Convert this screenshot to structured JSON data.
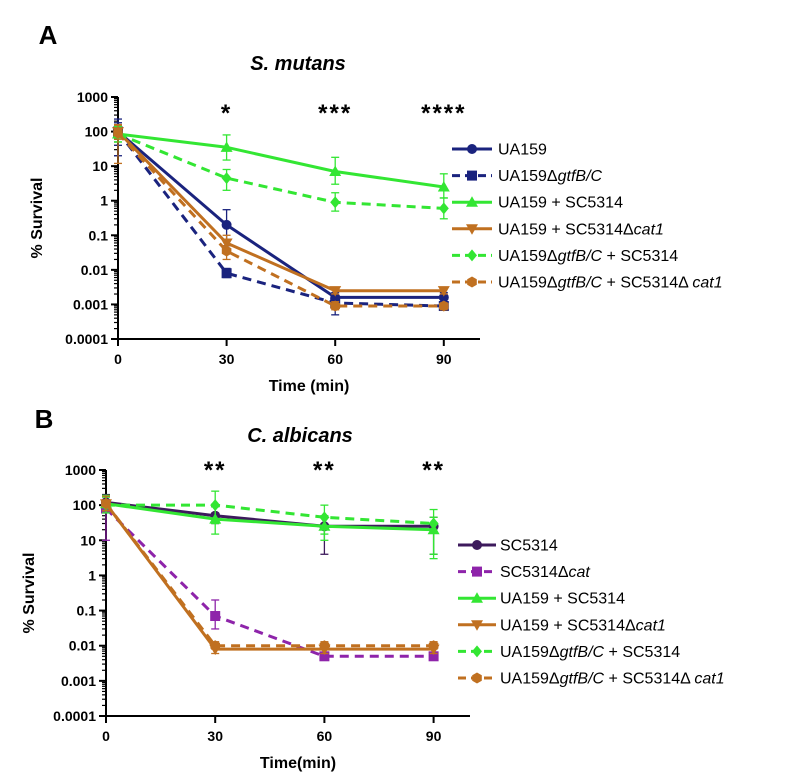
{
  "chart_data": [
    {
      "id": "A",
      "type": "line",
      "panel_label": "A",
      "title": "S. mutans",
      "xlabel": "Time (min)",
      "ylabel": "% Survival",
      "yscale": "log",
      "ylim": [
        0.0001,
        1000
      ],
      "xlim": [
        0,
        100
      ],
      "xticks": [
        0,
        30,
        60,
        90
      ],
      "yticks": [
        {
          "value": 1000,
          "label": "1000"
        },
        {
          "value": 100,
          "label": "100"
        },
        {
          "value": 10,
          "label": "10"
        },
        {
          "value": 1,
          "label": "1"
        },
        {
          "value": 0.1,
          "label": "0.1"
        },
        {
          "value": 0.01,
          "label": "0.01"
        },
        {
          "value": 0.001,
          "label": "0.001"
        },
        {
          "value": 0.0001,
          "label": "0.0001"
        }
      ],
      "x": [
        0,
        30,
        60,
        90
      ],
      "annotations": [
        {
          "x": 30,
          "text": "*"
        },
        {
          "x": 60,
          "text": "***"
        },
        {
          "x": 90,
          "text": "****"
        }
      ],
      "legend_position": "right",
      "series": [
        {
          "key": "a1",
          "name": "UA159",
          "parts": [
            {
              "t": "UA159"
            }
          ],
          "color": "#1a237e",
          "dashed": false,
          "marker": "circle",
          "values": [
            100,
            0.2,
            0.0016,
            0.0016
          ],
          "err_hi": [
            230,
            0.55,
            0.0022,
            0.0022
          ],
          "err_lo": [
            40,
            0.05,
            0.0011,
            0.0011
          ]
        },
        {
          "key": "a2",
          "name": "UA159ΔgtfB/C",
          "parts": [
            {
              "t": "UA159Δ"
            },
            {
              "t": "gtfB/C",
              "i": true
            }
          ],
          "color": "#1a237e",
          "dashed": true,
          "marker": "square",
          "values": [
            100,
            0.008,
            0.0011,
            0.0009
          ],
          "err_hi": [
            180,
            0.011,
            0.0016,
            0.0011
          ],
          "err_lo": [
            20,
            0.006,
            0.0005,
            0.0007
          ]
        },
        {
          "key": "a3",
          "name": "UA159 + SC5314",
          "parts": [
            {
              "t": "UA159 + SC5314"
            }
          ],
          "color": "#33e633",
          "dashed": false,
          "marker": "triangle-up",
          "values": [
            85,
            35,
            7,
            2.5
          ],
          "err_hi": [
            140,
            80,
            18,
            6
          ],
          "err_lo": [
            50,
            15,
            3,
            1.2
          ]
        },
        {
          "key": "a4",
          "name": "UA159 + SC5314Δcat1",
          "parts": [
            {
              "t": "UA159 + SC5314Δ"
            },
            {
              "t": "cat1",
              "i": true
            }
          ],
          "color": "#c07020",
          "dashed": false,
          "marker": "triangle-down",
          "values": [
            100,
            0.06,
            0.0025,
            0.0025
          ],
          "err_hi": [
            150,
            0.1,
            0.003,
            0.003
          ],
          "err_lo": [
            60,
            0.03,
            0.002,
            0.002
          ]
        },
        {
          "key": "a5",
          "name": "UA159ΔgtfB/C + SC5314",
          "parts": [
            {
              "t": "UA159Δ"
            },
            {
              "t": "gtfB/C",
              "i": true
            },
            {
              "t": " + SC5314"
            }
          ],
          "color": "#33e633",
          "dashed": true,
          "marker": "diamond",
          "values": [
            85,
            4.5,
            0.9,
            0.6
          ],
          "err_hi": [
            140,
            8,
            1.7,
            1.2
          ],
          "err_lo": [
            50,
            2,
            0.5,
            0.3
          ]
        },
        {
          "key": "a6",
          "name": "UA159ΔgtfB/C + SC5314Δ cat1",
          "parts": [
            {
              "t": "UA159Δ"
            },
            {
              "t": "gtfB/C",
              "i": true
            },
            {
              "t": " + SC5314Δ "
            },
            {
              "t": "cat1",
              "i": true
            }
          ],
          "color": "#c07020",
          "dashed": true,
          "marker": "hexagon",
          "values": [
            90,
            0.035,
            0.0009,
            0.0009
          ],
          "err_hi": [
            160,
            0.05,
            0.0012,
            0.0011
          ],
          "err_lo": [
            12,
            0.02,
            0.0007,
            0.0007
          ]
        }
      ]
    },
    {
      "id": "B",
      "type": "line",
      "panel_label": "B",
      "title": "C. albicans",
      "xlabel": "Time(min)",
      "ylabel": "% Survival",
      "yscale": "log",
      "ylim": [
        0.0001,
        1000
      ],
      "xlim": [
        0,
        100
      ],
      "xticks": [
        0,
        30,
        60,
        90
      ],
      "yticks": [
        {
          "value": 1000,
          "label": "1000"
        },
        {
          "value": 100,
          "label": "100"
        },
        {
          "value": 10,
          "label": "10"
        },
        {
          "value": 1,
          "label": "1"
        },
        {
          "value": 0.1,
          "label": "0.1"
        },
        {
          "value": 0.01,
          "label": "0.01"
        },
        {
          "value": 0.001,
          "label": "0.001"
        },
        {
          "value": 0.0001,
          "label": "0.0001"
        }
      ],
      "x": [
        0,
        30,
        60,
        90
      ],
      "annotations": [
        {
          "x": 30,
          "text": "**"
        },
        {
          "x": 60,
          "text": "**"
        },
        {
          "x": 90,
          "text": "**"
        }
      ],
      "legend_position": "right",
      "series": [
        {
          "key": "b1",
          "name": "SC5314",
          "parts": [
            {
              "t": "SC5314"
            }
          ],
          "color": "#3d1a5c",
          "dashed": false,
          "marker": "circle",
          "values": [
            120,
            50,
            25,
            25
          ],
          "err_hi": [
            200,
            90,
            45,
            45
          ],
          "err_lo": [
            80,
            30,
            4,
            4
          ]
        },
        {
          "key": "b2",
          "name": "SC5314Δcat",
          "parts": [
            {
              "t": "SC5314Δ"
            },
            {
              "t": "cat",
              "i": true
            }
          ],
          "color": "#8e24aa",
          "dashed": true,
          "marker": "square",
          "values": [
            80,
            0.07,
            0.005,
            0.005
          ],
          "err_hi": [
            130,
            0.2,
            0.006,
            0.006
          ],
          "err_lo": [
            10,
            0.03,
            0.004,
            0.004
          ]
        },
        {
          "key": "b3",
          "name": "UA159 + SC5314",
          "parts": [
            {
              "t": "UA159 + SC5314"
            }
          ],
          "color": "#33e633",
          "dashed": false,
          "marker": "triangle-up",
          "values": [
            110,
            40,
            25,
            20
          ],
          "err_hi": [
            190,
            90,
            50,
            45
          ],
          "err_lo": [
            70,
            15,
            10,
            3
          ]
        },
        {
          "key": "b4",
          "name": "UA159 + SC5314Δcat1",
          "parts": [
            {
              "t": "UA159 + SC5314Δ"
            },
            {
              "t": "cat1",
              "i": true
            }
          ],
          "color": "#c07020",
          "dashed": false,
          "marker": "triangle-down",
          "values": [
            110,
            0.008,
            0.008,
            0.008
          ],
          "err_hi": [
            170,
            0.01,
            0.01,
            0.01
          ],
          "err_lo": [
            70,
            0.006,
            0.006,
            0.006
          ]
        },
        {
          "key": "b5",
          "name": "UA159ΔgtfB/C + SC5314",
          "parts": [
            {
              "t": "UA159Δ"
            },
            {
              "t": "gtfB/C",
              "i": true
            },
            {
              "t": " + SC5314"
            }
          ],
          "color": "#33e633",
          "dashed": true,
          "marker": "diamond",
          "values": [
            100,
            100,
            45,
            30
          ],
          "err_hi": [
            170,
            250,
            100,
            75
          ],
          "err_lo": [
            60,
            30,
            15,
            4
          ]
        },
        {
          "key": "b6",
          "name": "UA159ΔgtfB/C + SC5314Δ cat1",
          "parts": [
            {
              "t": "UA159Δ"
            },
            {
              "t": "gtfB/C",
              "i": true
            },
            {
              "t": " + SC5314Δ "
            },
            {
              "t": "cat1",
              "i": true
            }
          ],
          "color": "#c07020",
          "dashed": true,
          "marker": "hexagon",
          "values": [
            110,
            0.01,
            0.01,
            0.01
          ],
          "err_hi": [
            180,
            0.013,
            0.013,
            0.013
          ],
          "err_lo": [
            70,
            0.008,
            0.008,
            0.008
          ]
        }
      ]
    }
  ]
}
